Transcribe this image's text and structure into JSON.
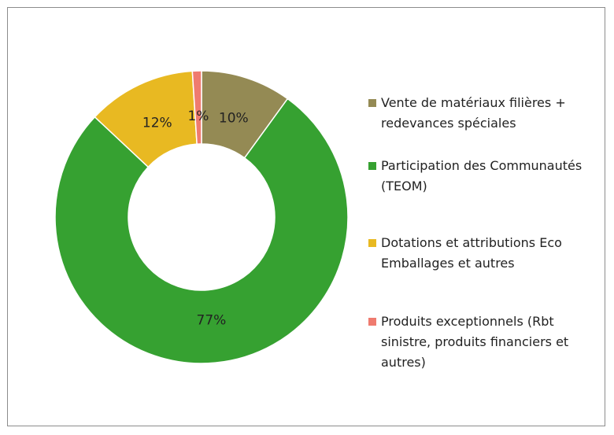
{
  "chart_data": {
    "type": "donut",
    "categories": [
      "Vente de matériaux filières + redevances spéciales",
      "Participation des Communautés (TEOM)",
      "Dotations et attributions Eco Emballages et autres",
      "Produits exceptionnels (Rbt sinistre, produits financiers et autres)"
    ],
    "values": [
      10,
      77,
      12,
      1
    ],
    "value_labels": [
      "10%",
      "77%",
      "12%",
      "1%"
    ],
    "colors": [
      "#948A54",
      "#36A131",
      "#E8B922",
      "#EF7B6F"
    ],
    "legend": "right"
  }
}
